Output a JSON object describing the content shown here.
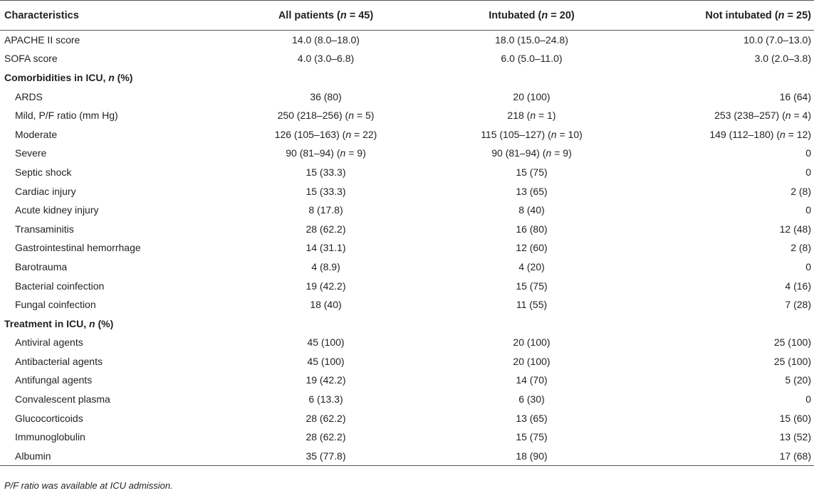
{
  "table": {
    "headers": [
      {
        "text": "Characteristics",
        "n": ""
      },
      {
        "text": "All patients (",
        "n": " = 45)"
      },
      {
        "text": "Intubated (",
        "n": " = 20)"
      },
      {
        "text": "Not intubated (",
        "n": " = 25)"
      }
    ],
    "n_symbol": "n",
    "rows": [
      {
        "type": "item",
        "level": 0,
        "label": "APACHE II score",
        "cells": [
          "14.0 (8.0–18.0)",
          "18.0 (15.0–24.8)",
          "10.0 (7.0–13.0)"
        ]
      },
      {
        "type": "item",
        "level": 0,
        "label": "SOFA score",
        "cells": [
          "4.0 (3.0–6.8)",
          "6.0 (5.0–11.0)",
          "3.0 (2.0–3.8)"
        ]
      },
      {
        "type": "section",
        "label": "Comorbidities in ICU, ",
        "label_n": "n",
        "label_suffix": " (%)"
      },
      {
        "type": "item",
        "level": 1,
        "label": "ARDS",
        "cells": [
          "36 (80)",
          "20 (100)",
          "16 (64)"
        ]
      },
      {
        "type": "item",
        "level": 1,
        "label": "Mild, P/F ratio (mm Hg)",
        "cells": [
          "250 (218–256) (n = 5)",
          "218 (n = 1)",
          "253 (238–257) (n = 4)"
        ]
      },
      {
        "type": "item",
        "level": 1,
        "label": "Moderate",
        "cells": [
          "126 (105–163) (n = 22)",
          "115 (105–127) (n = 10)",
          "149 (112–180) (n = 12)"
        ]
      },
      {
        "type": "item",
        "level": 1,
        "label": "Severe",
        "cells": [
          "90 (81–94) (n = 9)",
          "90 (81–94) (n = 9)",
          "0"
        ]
      },
      {
        "type": "item",
        "level": 1,
        "label": "Septic shock",
        "cells": [
          "15 (33.3)",
          "15 (75)",
          "0"
        ]
      },
      {
        "type": "item",
        "level": 1,
        "label": "Cardiac injury",
        "cells": [
          "15 (33.3)",
          "13 (65)",
          "2 (8)"
        ]
      },
      {
        "type": "item",
        "level": 1,
        "label": "Acute kidney injury",
        "cells": [
          "8 (17.8)",
          "8 (40)",
          "0"
        ]
      },
      {
        "type": "item",
        "level": 1,
        "label": "Transaminitis",
        "cells": [
          "28 (62.2)",
          "16 (80)",
          "12 (48)"
        ]
      },
      {
        "type": "item",
        "level": 1,
        "label": "Gastrointestinal hemorrhage",
        "cells": [
          "14 (31.1)",
          "12 (60)",
          "2 (8)"
        ]
      },
      {
        "type": "item",
        "level": 1,
        "label": "Barotrauma",
        "cells": [
          "4 (8.9)",
          "4 (20)",
          "0"
        ]
      },
      {
        "type": "item",
        "level": 1,
        "label": "Bacterial coinfection",
        "cells": [
          "19 (42.2)",
          "15 (75)",
          "4 (16)"
        ]
      },
      {
        "type": "item",
        "level": 1,
        "label": "Fungal coinfection",
        "cells": [
          "18 (40)",
          "11 (55)",
          "7 (28)"
        ]
      },
      {
        "type": "section",
        "label": "Treatment in ICU, ",
        "label_n": "n",
        "label_suffix": " (%)"
      },
      {
        "type": "item",
        "level": 1,
        "label": "Antiviral agents",
        "cells": [
          "45 (100)",
          "20 (100)",
          "25 (100)"
        ]
      },
      {
        "type": "item",
        "level": 1,
        "label": "Antibacterial agents",
        "cells": [
          "45 (100)",
          "20 (100)",
          "25 (100)"
        ]
      },
      {
        "type": "item",
        "level": 1,
        "label": "Antifungal agents",
        "cells": [
          "19 (42.2)",
          "14 (70)",
          "5 (20)"
        ]
      },
      {
        "type": "item",
        "level": 1,
        "label": "Convalescent plasma",
        "cells": [
          "6 (13.3)",
          "6 (30)",
          "0"
        ]
      },
      {
        "type": "item",
        "level": 1,
        "label": "Glucocorticoids",
        "cells": [
          "28 (62.2)",
          "13 (65)",
          "15 (60)"
        ]
      },
      {
        "type": "item",
        "level": 1,
        "label": "Immunoglobulin",
        "cells": [
          "28 (62.2)",
          "15 (75)",
          "13 (52)"
        ]
      },
      {
        "type": "item",
        "level": 1,
        "label": "Albumin",
        "cells": [
          "35 (77.8)",
          "18 (90)",
          "17 (68)"
        ]
      }
    ]
  },
  "footnote": "P/F ratio was available at ICU admission."
}
